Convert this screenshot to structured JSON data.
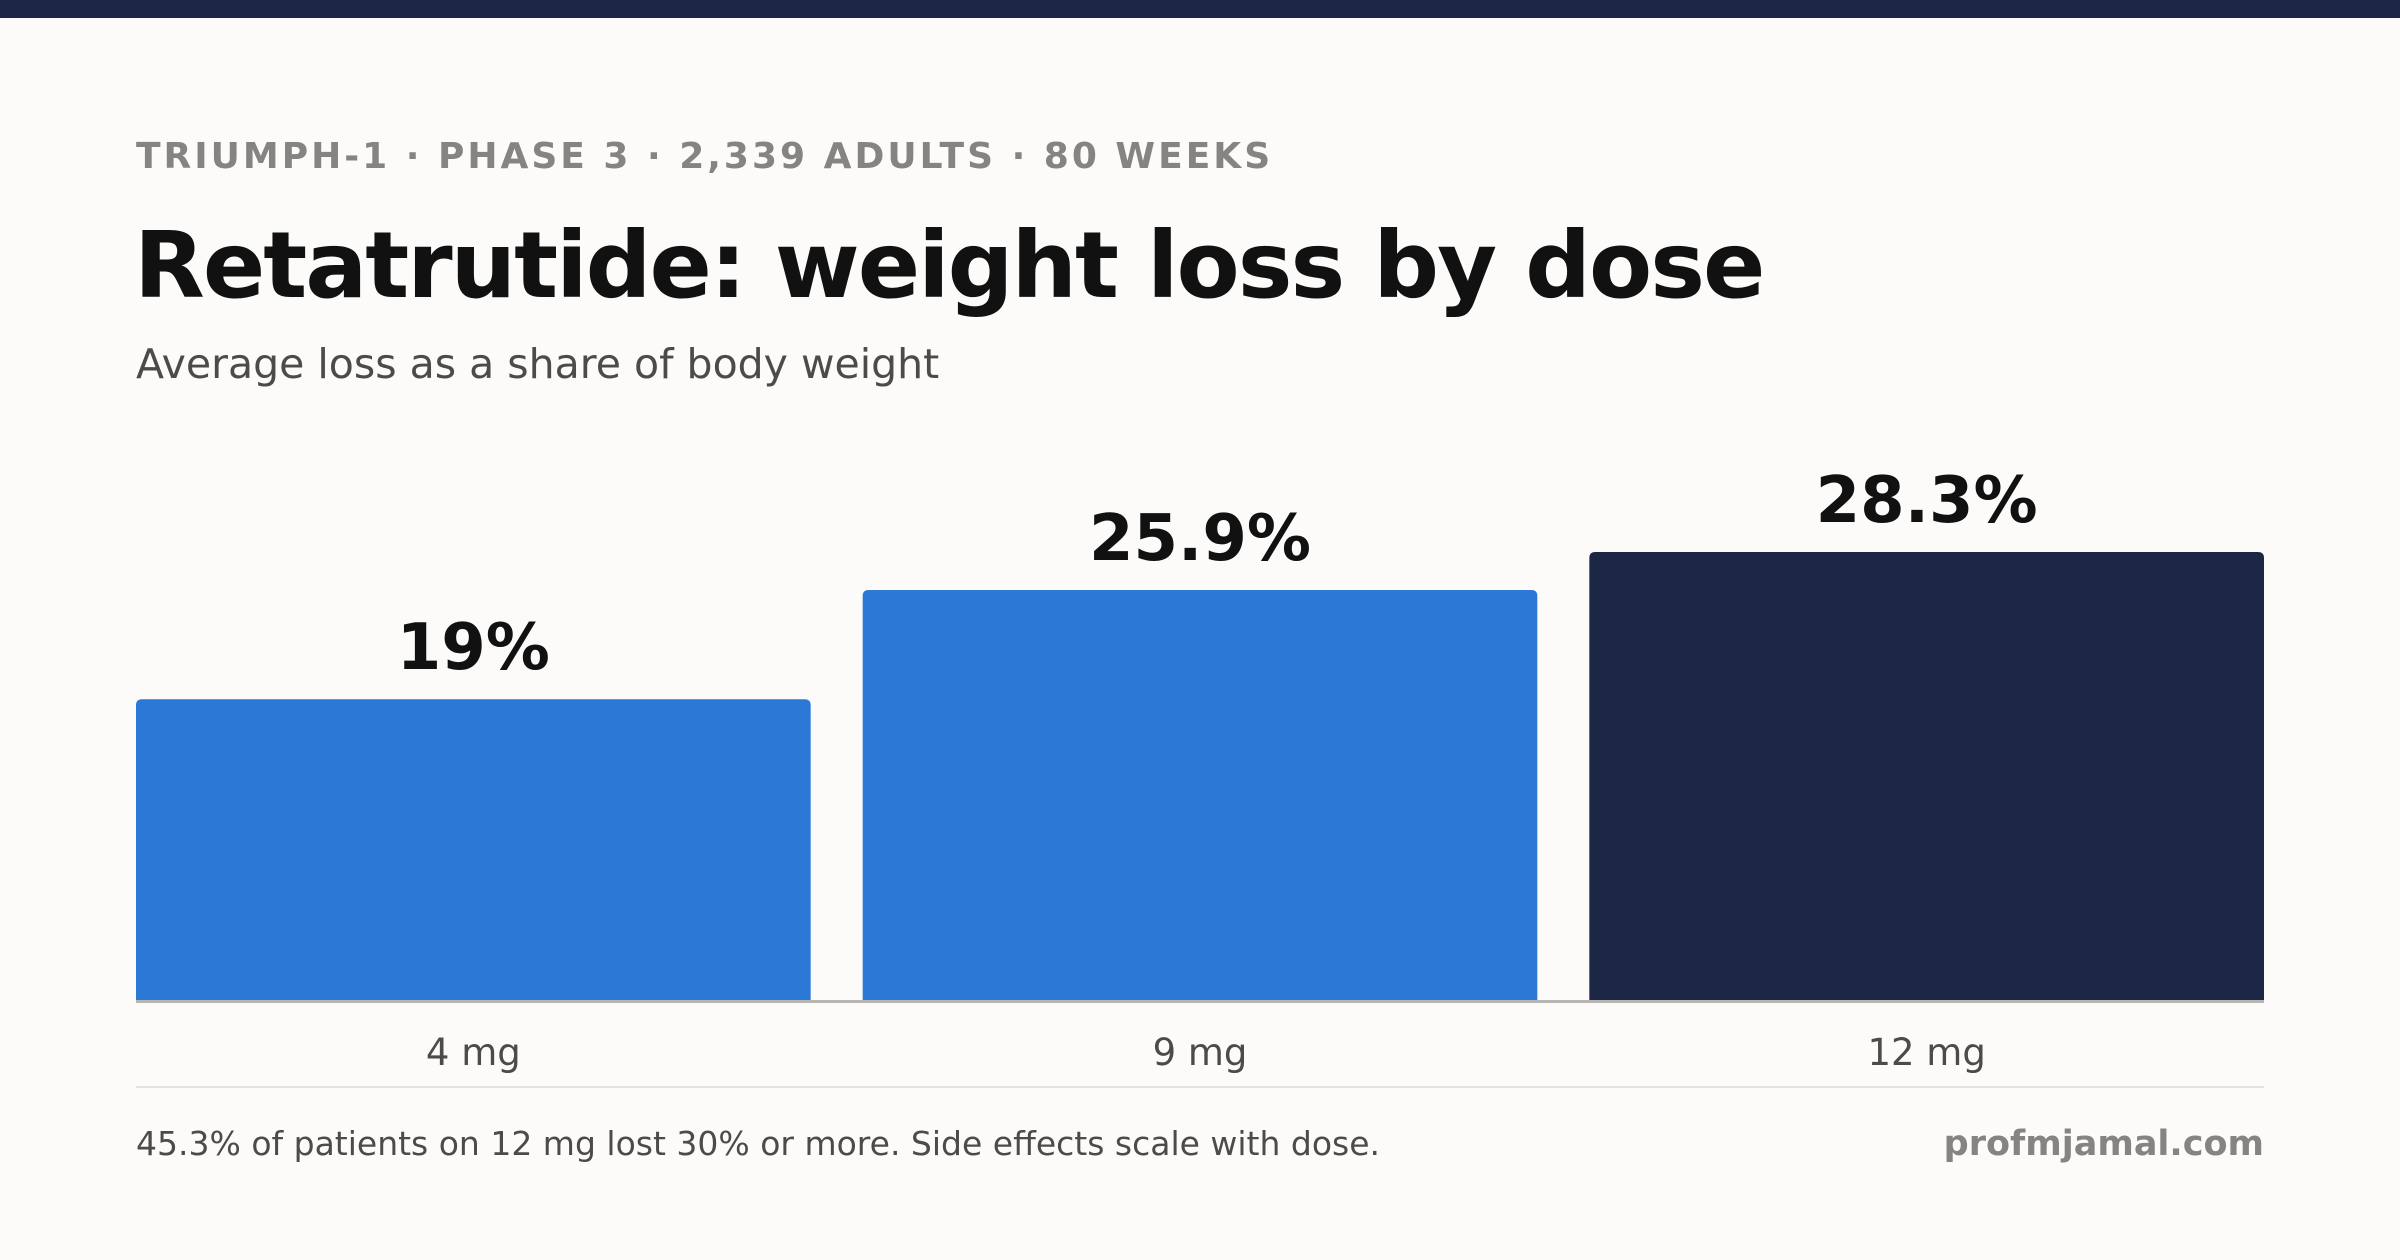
{
  "header": {
    "eyebrow": "TRIUMPH-1 · PHASE 3 · 2,339 ADULTS · 80 WEEKS",
    "title": "Retatrutide: weight loss by dose",
    "subtitle": "Average loss as a share of body weight"
  },
  "chart_data": {
    "type": "bar",
    "title": "Retatrutide: weight loss by dose",
    "subtitle": "Average loss as a share of body weight",
    "categories": [
      "4 mg",
      "9 mg",
      "12 mg"
    ],
    "values": [
      19,
      25.9,
      28.3
    ],
    "value_labels": [
      "19%",
      "25.9%",
      "28.3%"
    ],
    "xlabel": "",
    "ylabel": "",
    "grid": false,
    "legend": "none",
    "colors": [
      "#2b78d6",
      "#2b78d6",
      "#1b2745"
    ],
    "axis_color": "#b8b6b2"
  },
  "footer": {
    "note": "45.3% of patients on 12 mg lost 30% or more. Side effects scale with dose.",
    "credit": "profmjamal.com"
  }
}
